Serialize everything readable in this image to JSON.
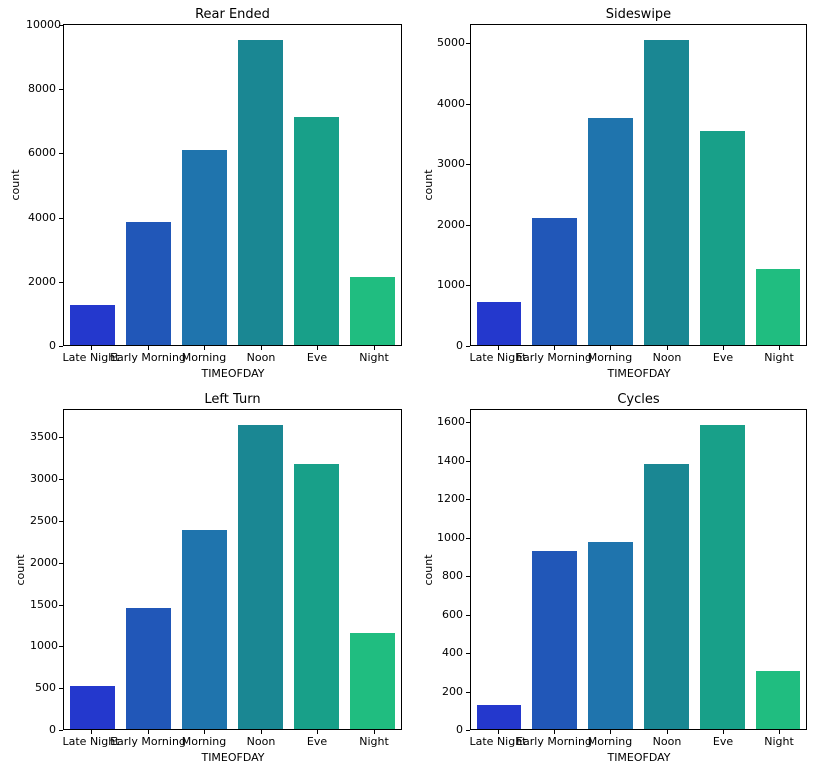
{
  "palette": [
    "#2438cd",
    "#2157b8",
    "#1f74ad",
    "#1a8793",
    "#18a089",
    "#20bd80"
  ],
  "chart_data": [
    {
      "type": "bar",
      "title": "Rear Ended",
      "xlabel": "TIMEOFDAY",
      "ylabel": "count",
      "categories": [
        "Late Night",
        "Early Morning",
        "Morning",
        "Noon",
        "Eve",
        "Night"
      ],
      "values": [
        1250,
        3870,
        6100,
        9550,
        7150,
        2120
      ],
      "yticks": [
        0,
        2000,
        4000,
        6000,
        8000,
        10000
      ],
      "ylim": [
        0,
        10030
      ],
      "grid": false,
      "legend": false
    },
    {
      "type": "bar",
      "title": "Sideswipe",
      "xlabel": "TIMEOFDAY",
      "ylabel": "count",
      "categories": [
        "Late Night",
        "Early Morning",
        "Morning",
        "Noon",
        "Eve",
        "Night"
      ],
      "values": [
        710,
        2110,
        3775,
        5070,
        3550,
        1270
      ],
      "yticks": [
        0,
        1000,
        2000,
        3000,
        4000,
        5000
      ],
      "ylim": [
        0,
        5320
      ],
      "grid": false,
      "legend": false
    },
    {
      "type": "bar",
      "title": "Left Turn",
      "xlabel": "TIMEOFDAY",
      "ylabel": "count",
      "categories": [
        "Late Night",
        "Early Morning",
        "Morning",
        "Noon",
        "Eve",
        "Night"
      ],
      "values": [
        515,
        1455,
        2400,
        3655,
        3190,
        1160
      ],
      "yticks": [
        0,
        500,
        1000,
        1500,
        2000,
        2500,
        3000,
        3500
      ],
      "ylim": [
        0,
        3840
      ],
      "grid": false,
      "legend": false
    },
    {
      "type": "bar",
      "title": "Cycles",
      "xlabel": "TIMEOFDAY",
      "ylabel": "count",
      "categories": [
        "Late Night",
        "Early Morning",
        "Morning",
        "Noon",
        "Eve",
        "Night"
      ],
      "values": [
        125,
        930,
        980,
        1390,
        1590,
        305
      ],
      "yticks": [
        0,
        200,
        400,
        600,
        800,
        1000,
        1200,
        1400,
        1600
      ],
      "ylim": [
        0,
        1670
      ],
      "grid": false,
      "legend": false
    }
  ]
}
